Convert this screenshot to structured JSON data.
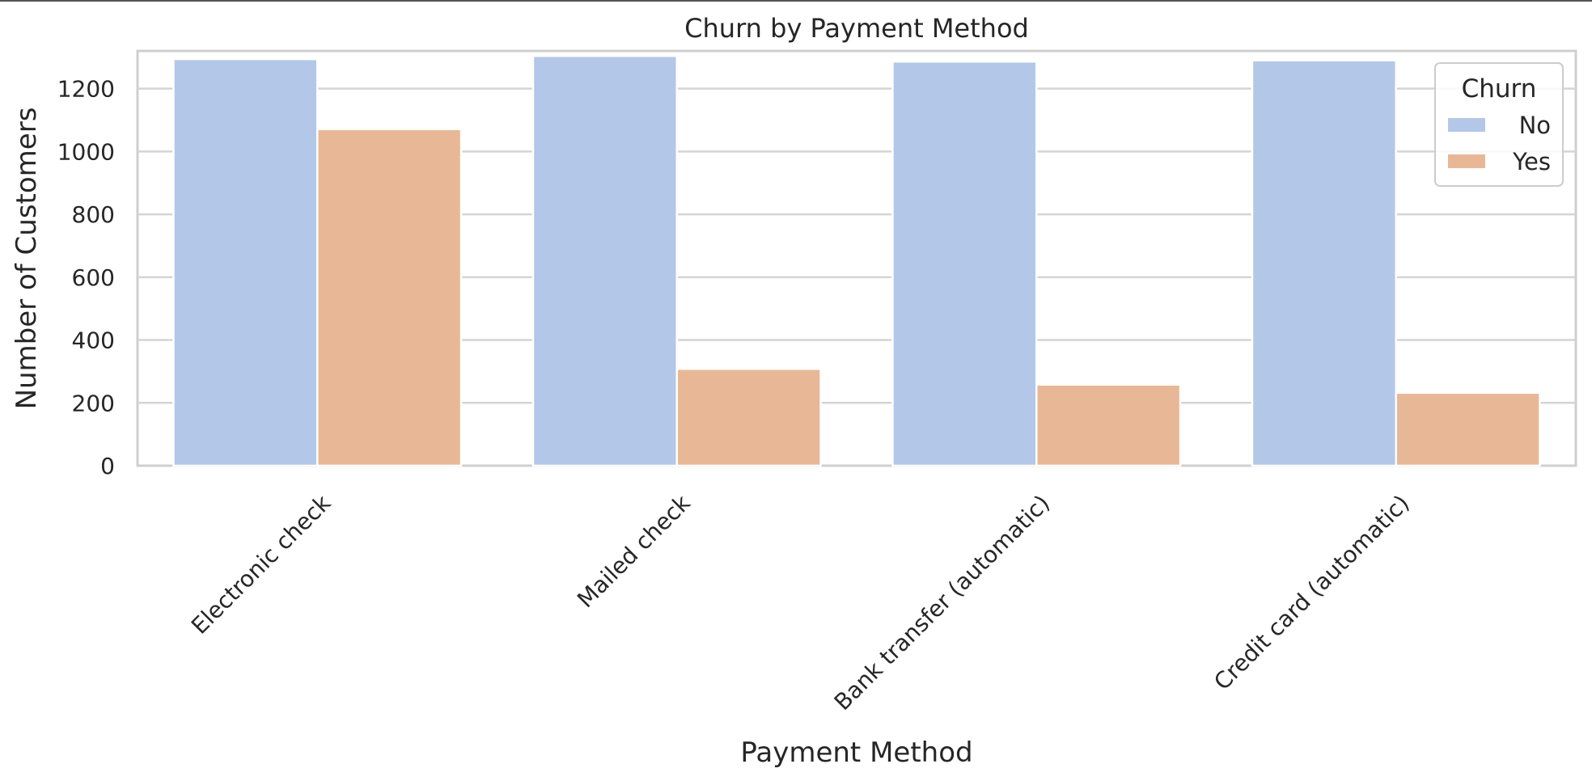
{
  "chart_data": {
    "type": "bar",
    "title": "Churn by Payment Method",
    "xlabel": "Payment Method",
    "ylabel": "Number of Customers",
    "categories": [
      "Electronic check",
      "Mailed check",
      "Bank transfer (automatic)",
      "Credit card (automatic)"
    ],
    "series": [
      {
        "name": "No",
        "values": [
          1294,
          1304,
          1286,
          1290
        ],
        "color": "#b3c8e8"
      },
      {
        "name": "Yes",
        "values": [
          1071,
          308,
          258,
          232
        ],
        "color": "#e8b896"
      }
    ],
    "ylim": [
      0,
      1320
    ],
    "yticks": [
      0,
      200,
      400,
      600,
      800,
      1000,
      1200
    ],
    "grid": true,
    "legend": {
      "title": "Churn",
      "placement": "top-right"
    }
  }
}
